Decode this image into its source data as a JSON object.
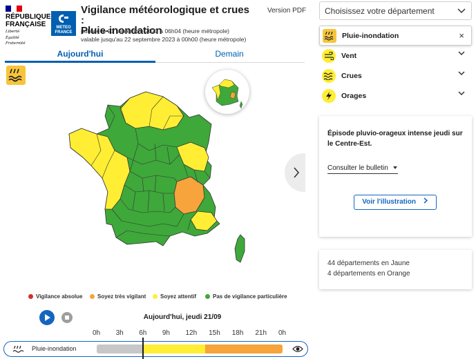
{
  "header": {
    "republic_lines": [
      "RÉPUBLIQUE",
      "FRANÇAISE"
    ],
    "motto_lines": [
      "Liberté",
      "Égalité",
      "Fraternité"
    ],
    "meteo_lines": [
      "METEO",
      "FRANCE"
    ],
    "title_line1": "Vigilance météorologique et crues :",
    "title_line2": "Pluie-inondation",
    "published": "publiée le 21 septembre 2023 à 06h04 (heure métropole)",
    "valid_until": "valable jusqu'au 22 septembre 2023 à 00h00 (heure métropole)",
    "pdf_link": "Version PDF"
  },
  "tabs": [
    {
      "label": "Aujourd'hui",
      "active": true
    },
    {
      "label": "Demain",
      "active": false
    }
  ],
  "legend": [
    {
      "label": "Vigilance absolue",
      "color": "#d32f2f"
    },
    {
      "label": "Soyez très vigilant",
      "color": "#f6a43b"
    },
    {
      "label": "Soyez attentif",
      "color": "#ffee33"
    },
    {
      "label": "Pas de vigilance particulière",
      "color": "#3ea83a"
    }
  ],
  "player": {
    "date": "Aujourd'hui, jeudi 21/09",
    "hours": [
      "0h",
      "3h",
      "6h",
      "9h",
      "12h",
      "15h",
      "18h",
      "21h",
      "0h"
    ],
    "current_hour": 6,
    "timeline_label": "Pluie-inondation",
    "segments": [
      {
        "from": 0,
        "to": 6,
        "color": "#c7c7c7"
      },
      {
        "from": 6,
        "to": 14,
        "color": "#ffee33"
      },
      {
        "from": 14,
        "to": 24,
        "color": "#f6a43b"
      }
    ]
  },
  "sidebar": {
    "dept_placeholder": "Choisissez votre département",
    "risks": [
      {
        "label": "Pluie-inondation",
        "icon": "rain-flood-icon",
        "active": true
      },
      {
        "label": "Vent",
        "icon": "wind-icon",
        "active": false
      },
      {
        "label": "Crues",
        "icon": "flood-icon",
        "active": false
      },
      {
        "label": "Orages",
        "icon": "thunderstorm-icon",
        "active": false
      }
    ],
    "episode_text": "Épisode pluvio-orageux intense jeudi sur le Centre-Est.",
    "bulletin_label": "Consulter le bulletin",
    "illustration_label": "Voir l'illustration",
    "counts": [
      "44 départements en Jaune",
      "4 départements en Orange"
    ]
  },
  "colors": {
    "primary": "#005fb0",
    "green": "#3ea83a",
    "yellow": "#ffee33",
    "orange": "#f6a43b"
  }
}
